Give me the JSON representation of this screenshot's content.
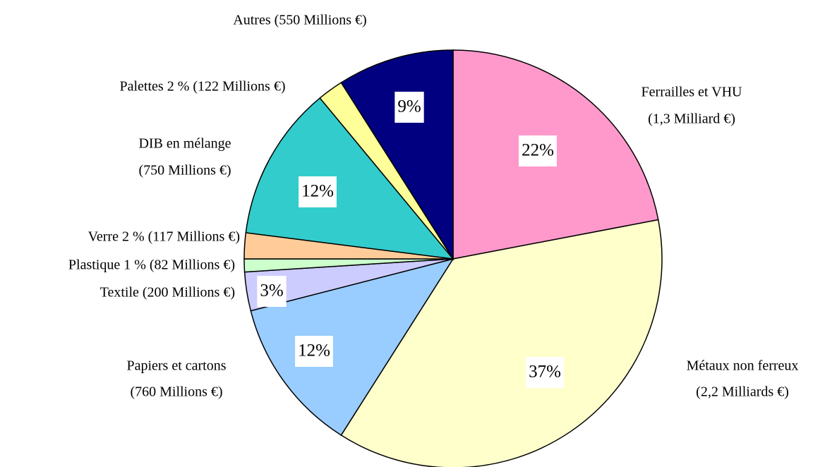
{
  "chart_data": {
    "type": "pie",
    "categories": [
      [
        "Ferrailles et VHU",
        "(1,3 Milliard €)"
      ],
      [
        "Métaux non ferreux",
        "(2,2 Milliards €)"
      ],
      [
        "Papiers et cartons",
        "(760 Millions €)"
      ],
      [
        "Textile  (200 Millions €)"
      ],
      [
        "Plastique 1 % (82 Millions €)"
      ],
      [
        "Verre 2 % (117 Millions €)"
      ],
      [
        "DIB en mélange",
        "(750 Millions €)"
      ],
      [
        "Palettes 2 % (122 Millions €)"
      ],
      [
        "Autres (550 Millions €)"
      ]
    ],
    "values": [
      22,
      37,
      12,
      3,
      1,
      2,
      12,
      2,
      9
    ],
    "value_labels": [
      "22%",
      "37%",
      "12%",
      "3%",
      null,
      null,
      "12%",
      null,
      "9%"
    ],
    "colors": [
      "#ff99cc",
      "#ffffcc",
      "#99ccff",
      "#ccccff",
      "#ccffcc",
      "#ffcc99",
      "#33cccc",
      "#ffff99",
      "#000080"
    ]
  }
}
